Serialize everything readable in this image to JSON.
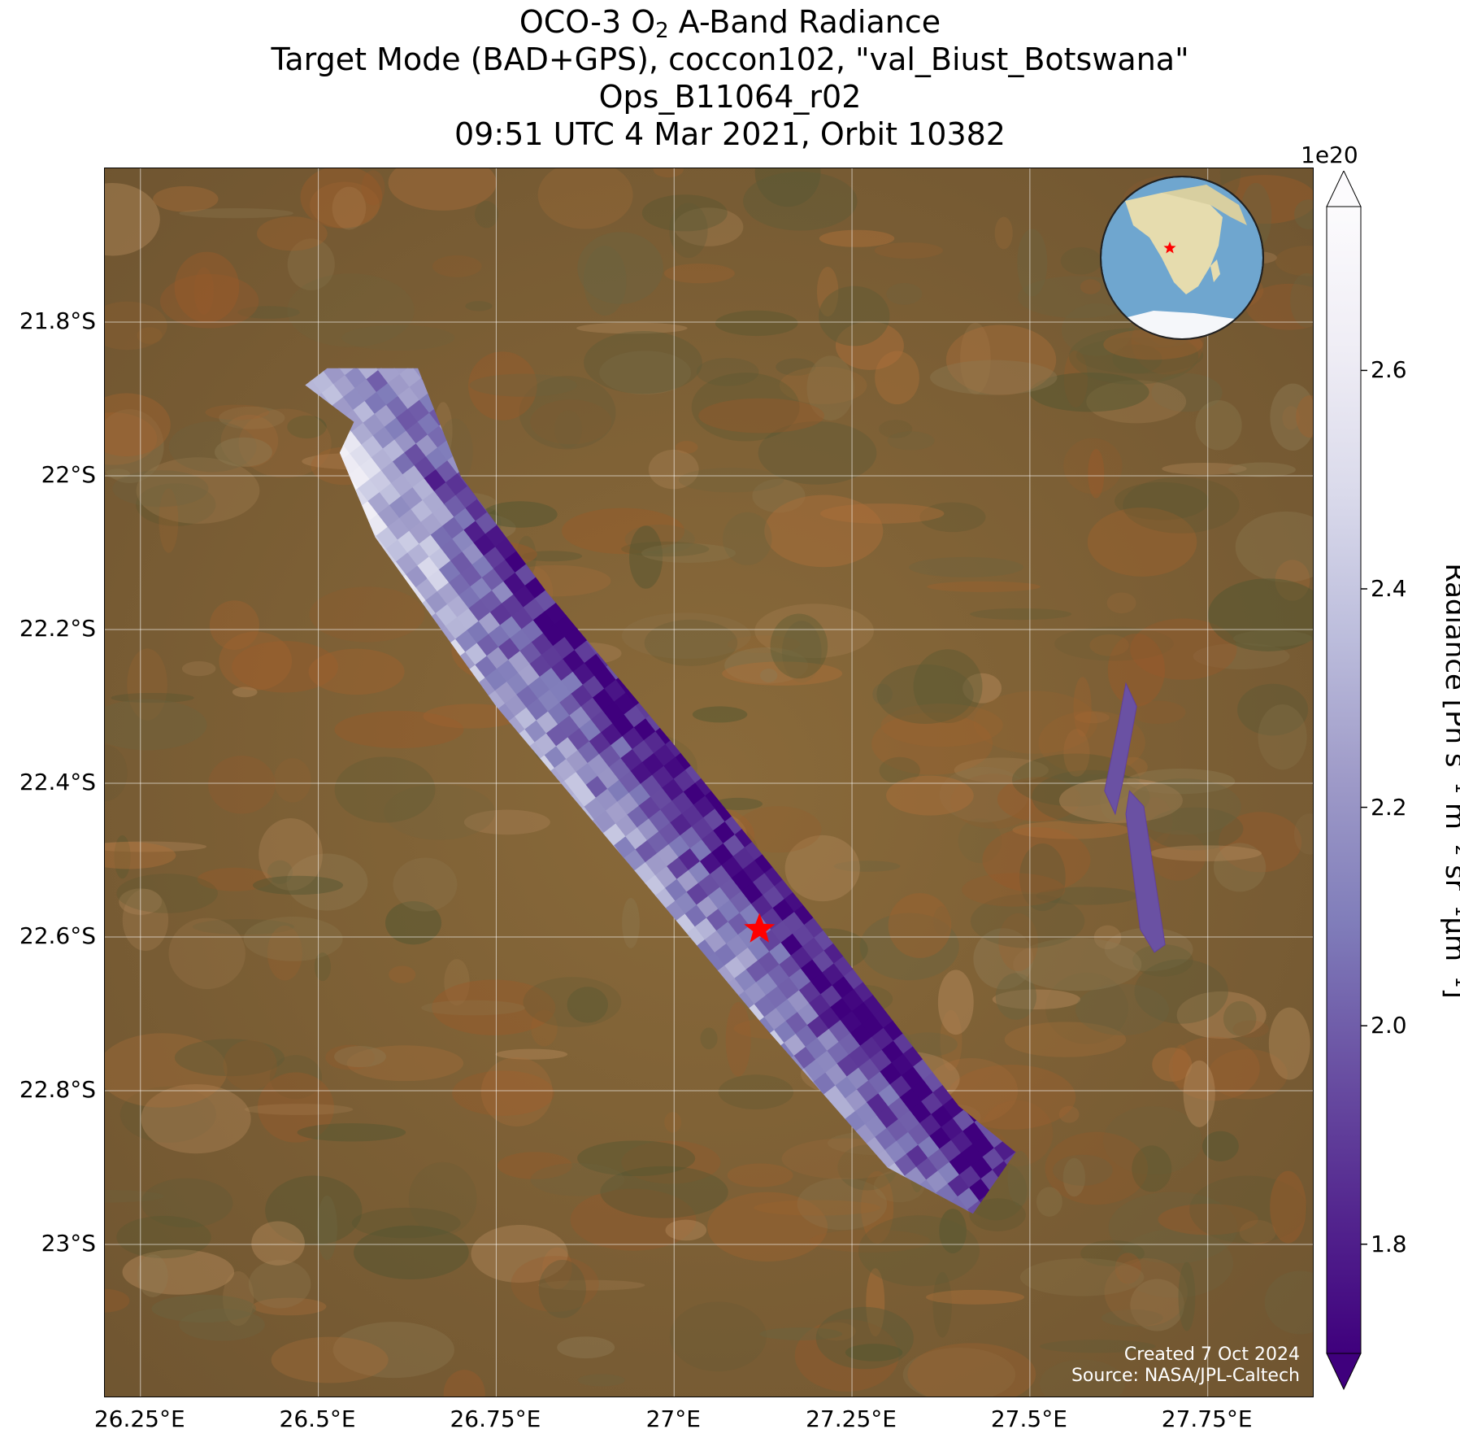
{
  "title": {
    "line1_pre": "OCO-3 O",
    "line1_sub": "2",
    "line1_post": " A-Band Radiance",
    "line2": "Target Mode (BAD+GPS), coccon102, \"val_Biust_Botswana\"",
    "line3": "Ops_B11064_r02",
    "line4": "09:51 UTC 4 Mar 2021, Orbit 10382"
  },
  "map": {
    "lon_range": [
      26.2,
      27.9
    ],
    "lat_range": [
      -23.2,
      -21.6
    ],
    "x_ticks": [
      {
        "value": 26.25,
        "label": "26.25°E"
      },
      {
        "value": 26.5,
        "label": "26.5°E"
      },
      {
        "value": 26.75,
        "label": "26.75°E"
      },
      {
        "value": 27.0,
        "label": "27°E"
      },
      {
        "value": 27.25,
        "label": "27.25°E"
      },
      {
        "value": 27.5,
        "label": "27.5°E"
      },
      {
        "value": 27.75,
        "label": "27.75°E"
      }
    ],
    "y_ticks": [
      {
        "value": -21.8,
        "label": "21.8°S"
      },
      {
        "value": -22.0,
        "label": "22°S"
      },
      {
        "value": -22.2,
        "label": "22.2°S"
      },
      {
        "value": -22.4,
        "label": "22.4°S"
      },
      {
        "value": -22.6,
        "label": "22.6°S"
      },
      {
        "value": -22.8,
        "label": "22.8°S"
      },
      {
        "value": -23.0,
        "label": "23°S"
      }
    ],
    "target_site": {
      "lon": 27.12,
      "lat": -22.59,
      "marker": "red-star"
    },
    "main_swath_polygon": [
      [
        26.45,
        -21.86
      ],
      [
        26.64,
        -21.86
      ],
      [
        26.7,
        -22.0
      ],
      [
        26.82,
        -22.15
      ],
      [
        27.0,
        -22.35
      ],
      [
        27.2,
        -22.58
      ],
      [
        27.4,
        -22.82
      ],
      [
        27.48,
        -22.88
      ],
      [
        27.42,
        -22.96
      ],
      [
        27.3,
        -22.9
      ],
      [
        27.13,
        -22.72
      ],
      [
        26.95,
        -22.52
      ],
      [
        26.75,
        -22.3
      ],
      [
        26.58,
        -22.08
      ],
      [
        26.53,
        -21.97
      ],
      [
        26.55,
        -21.93
      ]
    ],
    "small_swath_polygons": [
      [
        [
          27.635,
          -22.27
        ],
        [
          27.65,
          -22.3
        ],
        [
          27.63,
          -22.4
        ],
        [
          27.62,
          -22.44
        ],
        [
          27.605,
          -22.41
        ],
        [
          27.625,
          -22.32
        ]
      ],
      [
        [
          27.64,
          -22.41
        ],
        [
          27.66,
          -22.43
        ],
        [
          27.69,
          -22.61
        ],
        [
          27.675,
          -22.62
        ],
        [
          27.655,
          -22.59
        ],
        [
          27.635,
          -22.44
        ]
      ]
    ],
    "credits": [
      "Created 7 Oct 2024",
      "Source: NASA/JPL-Caltech"
    ],
    "inset_globe": {
      "center": "southern Africa",
      "marker": "red-star"
    }
  },
  "colorbar": {
    "exponent_label": "1e20",
    "min": 1.7,
    "max": 2.75,
    "extend": "both",
    "ticks": [
      {
        "value": 1.8,
        "label": "1.8"
      },
      {
        "value": 2.0,
        "label": "2.0"
      },
      {
        "value": 2.2,
        "label": "2.2"
      },
      {
        "value": 2.4,
        "label": "2.4"
      },
      {
        "value": 2.6,
        "label": "2.6"
      }
    ],
    "label": "Radiance [Ph s",
    "colormap": [
      "#3f007d",
      "#54278f",
      "#6a51a3",
      "#807dba",
      "#9e9ac8",
      "#bcbddc",
      "#dadaeb",
      "#efedf5",
      "#fcfbfd"
    ]
  },
  "chart_data": {
    "type": "heatmap",
    "title": "OCO-3 O2 A-Band Radiance",
    "xlabel": "",
    "ylabel": "",
    "xlim": [
      26.2,
      27.9
    ],
    "ylim": [
      -23.2,
      -21.6
    ],
    "units": "Ph s-1 m-2 sr-1 µm-1 (×1e20)",
    "value_range": [
      1.7,
      2.75
    ],
    "colorbar_ticks": [
      1.8,
      2.0,
      2.2,
      2.4,
      2.6
    ]
  }
}
